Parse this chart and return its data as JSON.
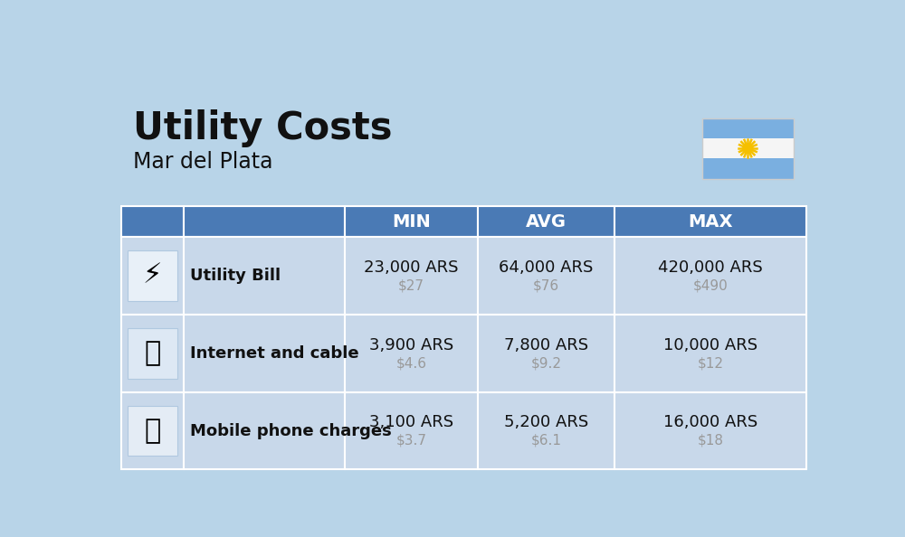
{
  "title": "Utility Costs",
  "subtitle": "Mar del Plata",
  "background_color": "#b8d4e8",
  "header_color": "#4a7ab5",
  "header_text_color": "#ffffff",
  "row_color": "#c8d8ea",
  "separator_color": "#ffffff",
  "text_color": "#111111",
  "subtext_color": "#999999",
  "col_headers": [
    "MIN",
    "AVG",
    "MAX"
  ],
  "rows": [
    {
      "label": "Utility Bill",
      "min_ars": "23,000 ARS",
      "min_usd": "$27",
      "avg_ars": "64,000 ARS",
      "avg_usd": "$76",
      "max_ars": "420,000 ARS",
      "max_usd": "$490"
    },
    {
      "label": "Internet and cable",
      "min_ars": "3,900 ARS",
      "min_usd": "$4.6",
      "avg_ars": "7,800 ARS",
      "avg_usd": "$9.2",
      "max_ars": "10,000 ARS",
      "max_usd": "$12"
    },
    {
      "label": "Mobile phone charges",
      "min_ars": "3,100 ARS",
      "min_usd": "$3.7",
      "avg_ars": "5,200 ARS",
      "avg_usd": "$6.1",
      "max_ars": "16,000 ARS",
      "max_usd": "$18"
    }
  ],
  "flag_blue": "#7aafe0",
  "flag_white": "#f5f5f5",
  "flag_sun": "#f5c000",
  "title_fontsize": 30,
  "subtitle_fontsize": 17,
  "header_fontsize": 14,
  "label_fontsize": 13,
  "value_fontsize": 13,
  "usd_fontsize": 11
}
